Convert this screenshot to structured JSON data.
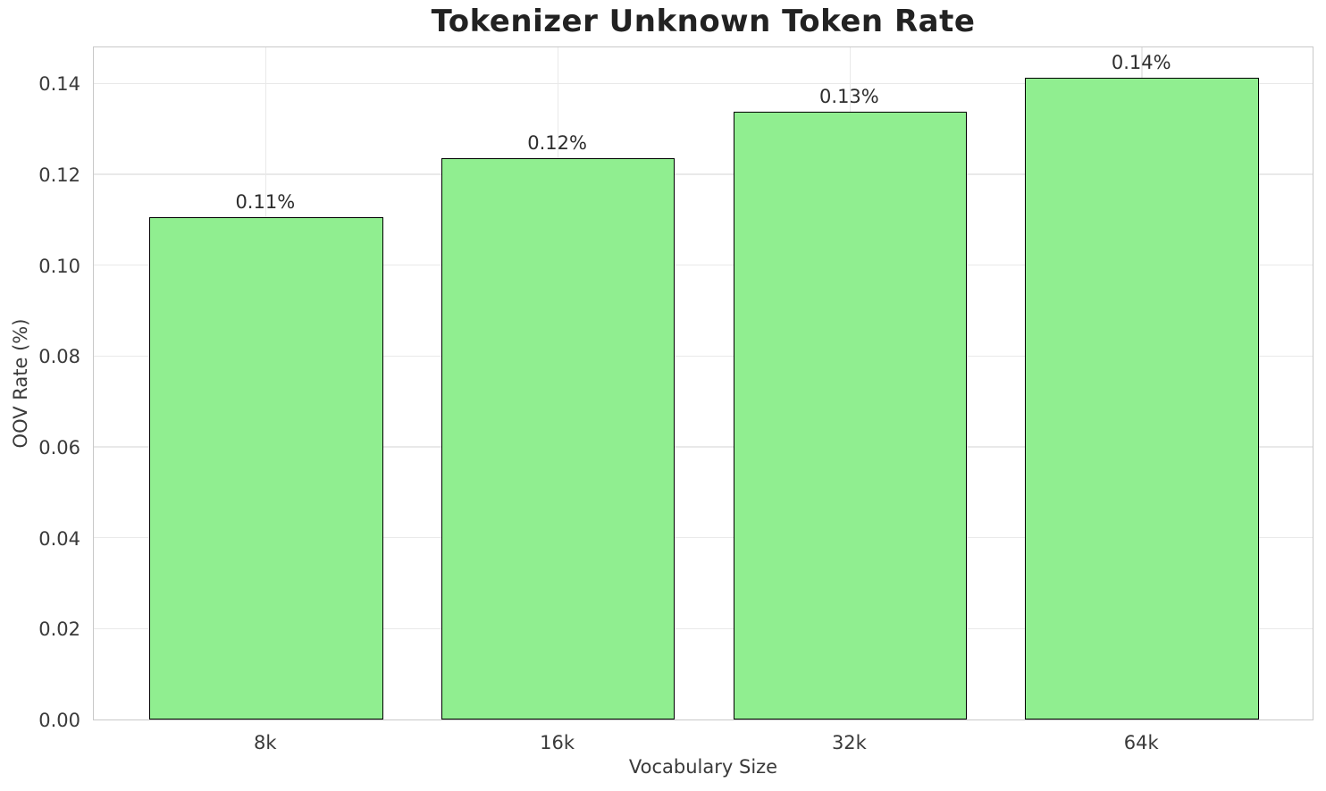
{
  "title": "Tokenizer Unknown Token Rate",
  "chart_data": {
    "type": "bar",
    "title": "Tokenizer Unknown Token Rate",
    "xlabel": "Vocabulary Size",
    "ylabel": "OOV Rate (%)",
    "categories": [
      "8k",
      "16k",
      "32k",
      "64k"
    ],
    "values": [
      0.1105,
      0.1235,
      0.1338,
      0.1412
    ],
    "bar_labels": [
      "0.11%",
      "0.12%",
      "0.13%",
      "0.14%"
    ],
    "yticks": [
      0.0,
      0.02,
      0.04,
      0.06,
      0.08,
      0.1,
      0.12,
      0.14
    ],
    "ytick_labels": [
      "0.00",
      "0.02",
      "0.04",
      "0.06",
      "0.08",
      "0.10",
      "0.12",
      "0.14"
    ],
    "ylim": [
      0,
      0.1483
    ],
    "grid": true,
    "legend": "none",
    "bar_color": "#90EE90",
    "bar_edge_color": "#000000",
    "grid_color": "#e9e9e9",
    "spine_color": "#c9c9c9",
    "background_color": "#ffffff"
  }
}
